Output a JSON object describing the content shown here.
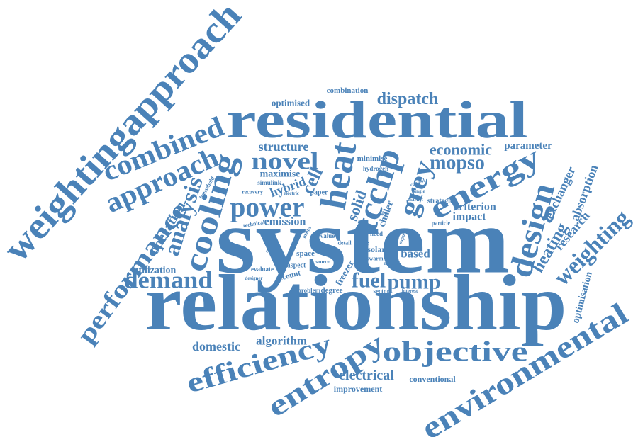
{
  "words": [
    "weightingapproach",
    "residential",
    "system",
    "relationship",
    "combined",
    "approach",
    "performance",
    "analysis",
    "cooling",
    "operation",
    "household",
    "heat",
    "tcchp",
    "novel",
    "structure",
    "maximise",
    "hybrid",
    "cell",
    "simulink",
    "recovery",
    "electric",
    "paper",
    "power",
    "emission",
    "technical",
    "solution",
    "maths",
    "value",
    "detail",
    "need",
    "solar",
    "result",
    "swarm",
    "supply",
    "space",
    "aspect",
    "source",
    "evaluate",
    "designer",
    "account",
    "problem",
    "degree",
    "freezer",
    "fuel",
    "pump",
    "sector",
    "interest",
    "natural",
    "based",
    "chiller",
    "solid",
    "grey",
    "energy",
    "design",
    "mopso",
    "economic",
    "parameter",
    "minimise",
    "hydrogen",
    "control",
    "single",
    "market",
    "strategies",
    "criterion",
    "impact",
    "particle",
    "dispatch",
    "combination",
    "optimised",
    "exchanger",
    "absorption",
    "research",
    "heating",
    "weighting",
    "optimisation",
    "environmental",
    "objective",
    "entropy",
    "efficiency",
    "domestic",
    "algorithm",
    "electrical",
    "improvement",
    "conventional",
    "demand",
    "utilization",
    "mode"
  ]
}
